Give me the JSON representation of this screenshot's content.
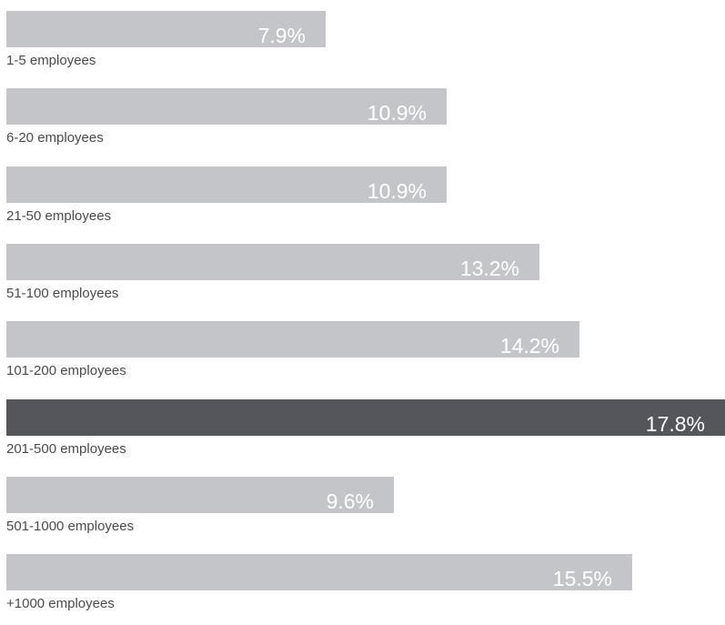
{
  "chart_data": {
    "type": "bar",
    "orientation": "horizontal",
    "categories": [
      "1-5 employees",
      "6-20 employees",
      "21-50 employees",
      "51-100 employees",
      "101-200 employees",
      "201-500 employees",
      "501-1000 employees",
      "+1000 employees"
    ],
    "values": [
      7.9,
      10.9,
      10.9,
      13.2,
      14.2,
      17.8,
      9.6,
      15.5
    ],
    "value_labels": [
      "7.9%",
      "10.9%",
      "10.9%",
      "13.2%",
      "14.2%",
      "17.8%",
      "9.6%",
      "15.5%"
    ],
    "unit": "%",
    "highlight_index": 5,
    "xlim": [
      0,
      17.8
    ],
    "grid": false,
    "legend": "none",
    "colors": {
      "bar": "#c4c5c8",
      "highlight": "#54565c",
      "value_text": "#ffffff",
      "label_text": "#4a4a4a"
    }
  }
}
